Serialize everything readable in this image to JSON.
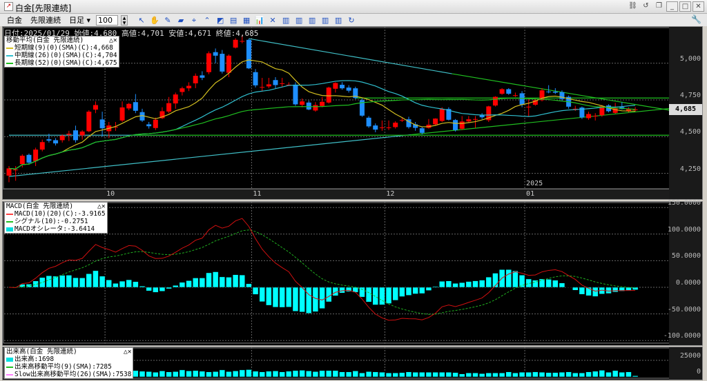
{
  "window": {
    "title": "白金[先限連続]",
    "app_icon": "chart-icon",
    "buttons": [
      "link-icon",
      "refresh-icon",
      "copy-icon",
      "minimize-icon",
      "maximize-icon",
      "close-icon"
    ]
  },
  "toolbar": {
    "symbol": "白金",
    "contract": "先限連続",
    "period": "日足",
    "period_arrow": "▾",
    "count": "100",
    "icons": [
      {
        "name": "pointer-icon",
        "g": "↖"
      },
      {
        "name": "hand-icon",
        "g": "✋"
      },
      {
        "name": "pencil-icon",
        "g": "✎"
      },
      {
        "name": "eraser-icon",
        "g": "▰"
      },
      {
        "name": "crosshair-icon",
        "g": "⌖"
      },
      {
        "name": "up-circle-icon",
        "g": "⌃"
      },
      {
        "name": "chart-settings-icon",
        "g": "◩"
      },
      {
        "name": "grid-icon",
        "g": "▤"
      },
      {
        "name": "table-icon",
        "g": "▦"
      },
      {
        "name": "bar-chart-dropdown-icon",
        "g": "📊"
      },
      {
        "name": "delete-icon",
        "g": "✕"
      },
      {
        "name": "indicator-1-icon",
        "g": "▥"
      },
      {
        "name": "indicator-2-icon",
        "g": "▥"
      },
      {
        "name": "indicator-3-icon",
        "g": "▥"
      },
      {
        "name": "indicator-4-icon",
        "g": "▥"
      },
      {
        "name": "indicator-5-icon",
        "g": "▥"
      },
      {
        "name": "reload-icon",
        "g": "↻"
      }
    ],
    "wrench": "wrench-icon"
  },
  "header": {
    "date": "日付:2025/01/29",
    "open": "始値:4,680",
    "high": "高値:4,701",
    "low": "安値:4,671",
    "close": "終値:4,685"
  },
  "ma_legend": {
    "title": "移動平均(白金 先限連続)",
    "controls": "△✕",
    "lines": [
      {
        "text": "短期線(9)(0)(SMA)(C):4,668",
        "color": "#d4c020",
        "period": 9
      },
      {
        "text": "中期線(26)(0)(SMA)(C):4,704",
        "color": "#30c0d0",
        "period": 26
      },
      {
        "text": "長期線(52)(0)(SMA)(C):4,675",
        "color": "#20c020",
        "period": 52
      }
    ]
  },
  "macd_legend": {
    "title": "MACD(白金 先限連続)",
    "controls": "△✕",
    "lines": [
      {
        "text": "MACD(10)(20)(C):-3.9165",
        "color": "#ff4040"
      },
      {
        "text": "シグナル(10):-0.2751",
        "color": "#20c020"
      },
      {
        "text": "MACDオシレータ:-3.6414",
        "color": "#00e0e0"
      }
    ]
  },
  "vol_legend": {
    "title": "出来高(白金 先限連続)",
    "controls": "△✕",
    "lines": [
      {
        "text": "出来高:1698",
        "color": "#00e0e0"
      },
      {
        "text": "出来高移動平均(9)(SMA):7285",
        "color": "#20c020"
      },
      {
        "text": "Slow出来高移動平均(26)(SMA):7538",
        "color": "#ff80ff"
      }
    ]
  },
  "colors": {
    "up": "#ff0000",
    "down": "#1e8fff",
    "grid": "#666666",
    "macd": "#d01010",
    "signal": "#20b020",
    "osc": "#00ffff",
    "volume": "#00ffff"
  },
  "chart_data": [
    {
      "type": "candlestick",
      "title": "",
      "price_axis": {
        "ticks": [
          {
            "label": "5,000",
            "value": 5000
          },
          {
            "label": "4,750",
            "value": 4750
          },
          {
            "label": "4,500",
            "value": 4500
          },
          {
            "label": "4,250",
            "value": 4250
          }
        ],
        "range": [
          4040,
          5210
        ]
      },
      "current_price": {
        "label": "4,685",
        "value": 4685
      },
      "x_ticks": [
        {
          "label": "10",
          "bar": 14
        },
        {
          "label": "11",
          "bar": 36
        },
        {
          "label": "12",
          "bar": 56
        },
        {
          "label": "01",
          "bar": 77,
          "year": "2025"
        }
      ],
      "ohlc": [
        [
          4235,
          4300,
          4190,
          4284
        ],
        [
          4276,
          4300,
          4200,
          4276
        ],
        [
          4313,
          4380,
          4290,
          4370
        ],
        [
          4376,
          4385,
          4310,
          4323
        ],
        [
          4334,
          4425,
          4300,
          4412
        ],
        [
          4412,
          4480,
          4400,
          4463
        ],
        [
          4482,
          4520,
          4460,
          4473
        ],
        [
          4476,
          4490,
          4440,
          4454
        ],
        [
          4476,
          4515,
          4460,
          4507
        ],
        [
          4513,
          4540,
          4470,
          4520
        ],
        [
          4543,
          4575,
          4460,
          4476
        ],
        [
          4509,
          4545,
          4480,
          4535
        ],
        [
          4537,
          4680,
          4530,
          4670
        ],
        [
          4684,
          4740,
          4660,
          4715
        ],
        [
          4617,
          4670,
          4500,
          4557
        ],
        [
          4537,
          4600,
          4490,
          4576
        ],
        [
          4567,
          4600,
          4540,
          4567
        ],
        [
          4610,
          4740,
          4600,
          4699
        ],
        [
          4692,
          4730,
          4680,
          4723
        ],
        [
          4735,
          4790,
          4660,
          4676
        ],
        [
          4667,
          4690,
          4600,
          4610
        ],
        [
          4584,
          4600,
          4555,
          4571
        ],
        [
          4559,
          4630,
          4545,
          4615
        ],
        [
          4626,
          4700,
          4620,
          4673
        ],
        [
          4671,
          4770,
          4660,
          4728
        ],
        [
          4726,
          4800,
          4690,
          4787
        ],
        [
          4804,
          4840,
          4780,
          4829
        ],
        [
          4829,
          4870,
          4810,
          4846
        ],
        [
          4863,
          4930,
          4830,
          4914
        ],
        [
          4917,
          4945,
          4885,
          4901
        ],
        [
          4939,
          5080,
          4925,
          5067
        ],
        [
          5075,
          5100,
          5000,
          5051
        ],
        [
          5064,
          5090,
          4930,
          4943
        ],
        [
          4935,
          5060,
          4905,
          5051
        ],
        [
          5106,
          5170,
          5100,
          5159
        ],
        [
          5151,
          5190,
          5135,
          5151
        ],
        [
          5159,
          5165,
          4960,
          4965
        ],
        [
          4939,
          4960,
          4835,
          4849
        ],
        [
          4838,
          4900,
          4810,
          4838
        ],
        [
          4842,
          4900,
          4830,
          4856
        ],
        [
          4885,
          4905,
          4830,
          4851
        ],
        [
          4863,
          4900,
          4840,
          4863
        ],
        [
          4854,
          4870,
          4845,
          4854
        ],
        [
          4854,
          4870,
          4710,
          4720
        ],
        [
          4717,
          4760,
          4700,
          4740
        ],
        [
          4732,
          4745,
          4680,
          4685
        ],
        [
          4678,
          4735,
          4670,
          4715
        ],
        [
          4709,
          4770,
          4700,
          4737
        ],
        [
          4732,
          4840,
          4725,
          4834
        ],
        [
          4826,
          4870,
          4800,
          4865
        ],
        [
          4853,
          4870,
          4820,
          4829
        ],
        [
          4834,
          4850,
          4800,
          4813
        ],
        [
          4829,
          4840,
          4755,
          4763
        ],
        [
          4748,
          4760,
          4635,
          4643
        ],
        [
          4629,
          4640,
          4560,
          4570
        ],
        [
          4576,
          4590,
          4530,
          4548
        ],
        [
          4563,
          4610,
          4540,
          4563
        ],
        [
          4563,
          4610,
          4545,
          4563
        ],
        [
          4565,
          4605,
          4555,
          4595
        ],
        [
          4613,
          4630,
          4600,
          4613
        ],
        [
          4618,
          4635,
          4555,
          4565
        ],
        [
          4584,
          4600,
          4540,
          4560
        ],
        [
          4557,
          4565,
          4515,
          4526
        ],
        [
          4560,
          4620,
          4555,
          4581
        ],
        [
          4584,
          4625,
          4575,
          4623
        ],
        [
          4607,
          4700,
          4600,
          4688
        ],
        [
          4688,
          4700,
          4610,
          4615
        ],
        [
          4613,
          4620,
          4535,
          4545
        ],
        [
          4554,
          4640,
          4545,
          4603
        ],
        [
          4604,
          4640,
          4595,
          4618
        ],
        [
          4620,
          4640,
          4560,
          4620
        ],
        [
          4649,
          4660,
          4620,
          4632
        ],
        [
          4612,
          4710,
          4600,
          4706
        ],
        [
          4712,
          4775,
          4705,
          4771
        ],
        [
          4792,
          4830,
          4785,
          4823
        ],
        [
          4823,
          4830,
          4785,
          4792
        ],
        [
          4782,
          4800,
          4770,
          4782
        ],
        [
          4795,
          4810,
          4700,
          4718
        ],
        [
          4704,
          4760,
          4640,
          4704
        ],
        [
          4717,
          4760,
          4710,
          4748
        ],
        [
          4748,
          4830,
          4740,
          4815
        ],
        [
          4807,
          4850,
          4795,
          4803
        ],
        [
          4806,
          4830,
          4790,
          4799
        ],
        [
          4803,
          4815,
          4745,
          4756
        ],
        [
          4771,
          4780,
          4690,
          4704
        ],
        [
          4690,
          4710,
          4675,
          4690
        ],
        [
          4698,
          4705,
          4620,
          4631
        ],
        [
          4626,
          4670,
          4615,
          4654
        ],
        [
          4642,
          4660,
          4610,
          4642
        ],
        [
          4646,
          4715,
          4635,
          4709
        ],
        [
          4712,
          4720,
          4665,
          4673
        ],
        [
          4662,
          4730,
          4655,
          4693
        ],
        [
          4701,
          4735,
          4685,
          4688
        ],
        [
          4673,
          4700,
          4665,
          4688
        ],
        [
          4680,
          4701,
          4671,
          4685
        ]
      ],
      "trend_lines": [
        {
          "color": "#40c0c8",
          "from": [
            36,
            5167
          ],
          "to": [
            66.5,
            4928
          ]
        },
        {
          "color": "#20c020",
          "from": [
            66.5,
            4928
          ],
          "to": [
            99.4,
            4678
          ]
        },
        {
          "color": "#40c0c8",
          "from": [
            0,
            4229
          ],
          "to": [
            60.3,
            4513
          ]
        },
        {
          "color": "#20c020",
          "from": [
            60.3,
            4513
          ],
          "to": [
            99.4,
            4693
          ]
        },
        {
          "color": "#40c0c8",
          "from": [
            0,
            4510
          ],
          "to": [
            25,
            4510
          ]
        },
        {
          "color": "#20c020",
          "from": [
            19,
            4510
          ],
          "to": [
            99.4,
            4510
          ]
        },
        {
          "color": "#20c020",
          "from": [
            52,
            4763
          ],
          "to": [
            99.4,
            4763
          ]
        }
      ]
    },
    {
      "type": "macd",
      "axis": {
        "ticks": [
          {
            "label": "150.0000",
            "value": 150
          },
          {
            "label": "100.0000",
            "value": 100
          },
          {
            "label": "50.0000",
            "value": 50
          },
          {
            "label": "0.0000",
            "value": 0
          },
          {
            "label": "-50.0000",
            "value": -50
          },
          {
            "label": "-100.0000",
            "value": -100
          }
        ]
      },
      "fast": 10,
      "slow": 20,
      "signal": 10
    },
    {
      "type": "bar",
      "axis": {
        "ticks": [
          {
            "label": "25000",
            "value": 25000
          },
          {
            "label": "0",
            "value": 0
          }
        ]
      },
      "volume": [
        9000,
        6000,
        10000,
        8000,
        9500,
        7000,
        8000,
        7500,
        9000,
        8000,
        8500,
        9000,
        10000,
        9500,
        11000,
        8500,
        10000,
        8000,
        7500,
        9500,
        8500,
        8000,
        7000,
        9000,
        7500,
        8000,
        10500,
        9000,
        9500,
        8500,
        7500,
        8000,
        10500,
        8000,
        9000,
        10500,
        11000,
        8500,
        7500,
        8500,
        9000,
        7500,
        8500,
        9500,
        10000,
        9000,
        8000,
        9500,
        9500,
        9500,
        7500,
        7500,
        9000,
        6000,
        8000,
        7500,
        7000,
        6000,
        6000,
        6500,
        7500,
        7000,
        7000,
        7000,
        7000,
        7000,
        7000,
        6500,
        4500,
        6000,
        6000,
        5000,
        6000,
        6000,
        6000,
        7500,
        6000,
        7000,
        7000,
        7500,
        7000,
        6500,
        6500,
        7000,
        7500,
        6000,
        6000,
        7500,
        8500,
        10000,
        7000,
        9500,
        7000,
        7500,
        1698
      ]
    }
  ]
}
